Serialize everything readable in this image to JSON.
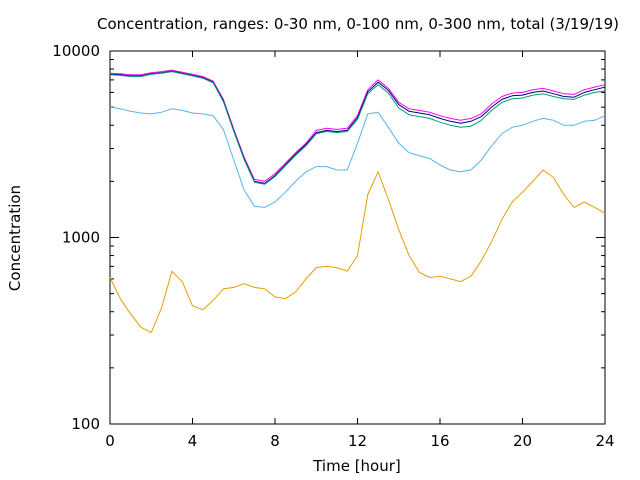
{
  "chart_data": {
    "type": "line",
    "title": "Concentration, ranges: 0-30 nm, 0-100 nm, 0-300 nm, total (3/19/19)",
    "xlabel": "Time [hour]",
    "ylabel": "Concentration",
    "xlim": [
      0,
      24
    ],
    "ylim": [
      100,
      10000
    ],
    "yscale": "log",
    "grid": false,
    "legend": "none",
    "x_ticks": [
      0,
      4,
      8,
      12,
      16,
      20,
      24
    ],
    "x_tick_labels": [
      "0",
      "4",
      "8",
      "12",
      "16",
      "20",
      "24"
    ],
    "y_ticks": [
      100,
      1000,
      10000
    ],
    "y_tick_labels": [
      "100",
      "1000",
      "10000"
    ],
    "x": [
      0,
      0.5,
      1,
      1.5,
      2,
      2.5,
      3,
      3.5,
      4,
      4.5,
      5,
      5.5,
      6,
      6.5,
      7,
      7.5,
      8,
      8.5,
      9,
      9.5,
      10,
      10.5,
      11,
      11.5,
      12,
      12.5,
      13,
      13.5,
      14,
      14.5,
      15,
      15.5,
      16,
      16.5,
      17,
      17.5,
      18,
      18.5,
      19,
      19.5,
      20,
      20.5,
      21,
      21.5,
      22,
      22.5,
      23,
      23.5,
      24
    ],
    "series": [
      {
        "color": "#ff00ff",
        "values": [
          7600,
          7550,
          7450,
          7450,
          7650,
          7750,
          7900,
          7700,
          7500,
          7300,
          6900,
          5500,
          3800,
          2700,
          2050,
          2000,
          2200,
          2500,
          2850,
          3200,
          3750,
          3850,
          3800,
          3850,
          4500,
          6200,
          7000,
          6300,
          5300,
          4900,
          4800,
          4700,
          4500,
          4350,
          4250,
          4350,
          4600,
          5200,
          5700,
          5950,
          6000,
          6200,
          6300,
          6100,
          5900,
          5850,
          6200,
          6400,
          6600
        ]
      },
      {
        "color": "#000080",
        "values": [
          7500,
          7450,
          7350,
          7350,
          7550,
          7650,
          7800,
          7600,
          7400,
          7200,
          6800,
          5400,
          3750,
          2650,
          2000,
          1950,
          2150,
          2450,
          2800,
          3150,
          3650,
          3750,
          3700,
          3750,
          4400,
          6050,
          6800,
          6150,
          5150,
          4750,
          4650,
          4550,
          4350,
          4200,
          4100,
          4200,
          4450,
          5000,
          5500,
          5750,
          5800,
          6000,
          6100,
          5900,
          5700,
          5650,
          6000,
          6200,
          6400
        ]
      },
      {
        "color": "#009e73",
        "values": [
          7450,
          7400,
          7300,
          7300,
          7500,
          7600,
          7750,
          7550,
          7350,
          7150,
          6750,
          5350,
          3700,
          2620,
          1980,
          1930,
          2120,
          2420,
          2760,
          3100,
          3600,
          3700,
          3650,
          3700,
          4300,
          5900,
          6600,
          5950,
          4950,
          4550,
          4450,
          4350,
          4150,
          4000,
          3900,
          3950,
          4250,
          4800,
          5300,
          5550,
          5600,
          5800,
          5900,
          5700,
          5550,
          5500,
          5800,
          6000,
          6100
        ]
      },
      {
        "color": "#56b4e9",
        "values": [
          5000,
          4900,
          4750,
          4650,
          4600,
          4700,
          4900,
          4800,
          4650,
          4600,
          4500,
          3800,
          2600,
          1800,
          1470,
          1450,
          1550,
          1750,
          2000,
          2250,
          2400,
          2400,
          2300,
          2300,
          3200,
          4600,
          4700,
          3900,
          3200,
          2850,
          2750,
          2650,
          2450,
          2300,
          2250,
          2300,
          2600,
          3100,
          3600,
          3900,
          4000,
          4200,
          4350,
          4250,
          4000,
          4000,
          4200,
          4250,
          4500
        ]
      },
      {
        "color": "#e69f00",
        "values": [
          610,
          470,
          390,
          330,
          310,
          420,
          660,
          580,
          430,
          410,
          460,
          530,
          540,
          565,
          540,
          530,
          480,
          470,
          510,
          600,
          690,
          700,
          690,
          660,
          800,
          1700,
          2250,
          1600,
          1100,
          800,
          650,
          610,
          620,
          600,
          580,
          620,
          750,
          950,
          1250,
          1550,
          1750,
          2000,
          2300,
          2100,
          1700,
          1450,
          1550,
          1450,
          1350
        ]
      }
    ]
  }
}
